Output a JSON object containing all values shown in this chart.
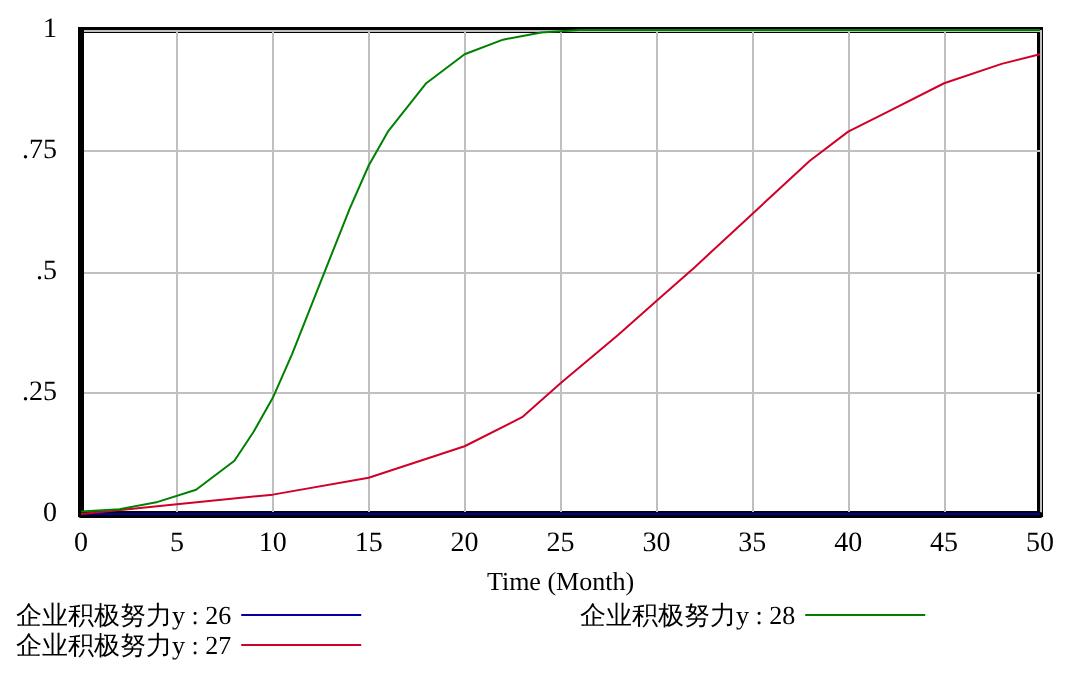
{
  "chart_data": {
    "type": "line",
    "xlabel": "Time (Month)",
    "xlim": [
      0,
      50
    ],
    "xticks": [
      0,
      5,
      10,
      15,
      20,
      25,
      30,
      35,
      40,
      45,
      50
    ],
    "ylim": [
      0,
      1
    ],
    "yticks": [
      0,
      {
        "value": 0.25,
        "label": ".25"
      },
      {
        "value": 0.5,
        "label": ".5"
      },
      {
        "value": 0.75,
        "label": ".75"
      },
      1
    ],
    "grid": true,
    "legend": "bottom",
    "marker": "none",
    "line_style": "solid",
    "series": [
      {
        "name": "企业积极努力y : 26",
        "color": "#0000a0",
        "x": [
          0,
          10,
          20,
          30,
          40,
          50
        ],
        "values": [
          0,
          0,
          0,
          0,
          0,
          0
        ]
      },
      {
        "name": "企业积极努力y : 27",
        "color": "#d0002a",
        "x": [
          0,
          5,
          10,
          15,
          20,
          23,
          25,
          28,
          30,
          32,
          35,
          38,
          40,
          42,
          45,
          48,
          50
        ],
        "values": [
          0,
          0.02,
          0.04,
          0.075,
          0.14,
          0.2,
          0.27,
          0.37,
          0.44,
          0.51,
          0.62,
          0.73,
          0.79,
          0.83,
          0.89,
          0.93,
          0.95
        ]
      },
      {
        "name": "企业积极努力y : 28",
        "color": "#008000",
        "x": [
          0,
          2,
          4,
          6,
          8,
          9,
          10,
          11,
          12,
          13,
          14,
          15,
          16,
          18,
          20,
          22,
          24,
          26,
          28,
          50
        ],
        "values": [
          0.005,
          0.01,
          0.025,
          0.05,
          0.11,
          0.17,
          0.24,
          0.33,
          0.43,
          0.53,
          0.63,
          0.72,
          0.79,
          0.89,
          0.95,
          0.98,
          0.995,
          1,
          1,
          1
        ]
      }
    ]
  }
}
